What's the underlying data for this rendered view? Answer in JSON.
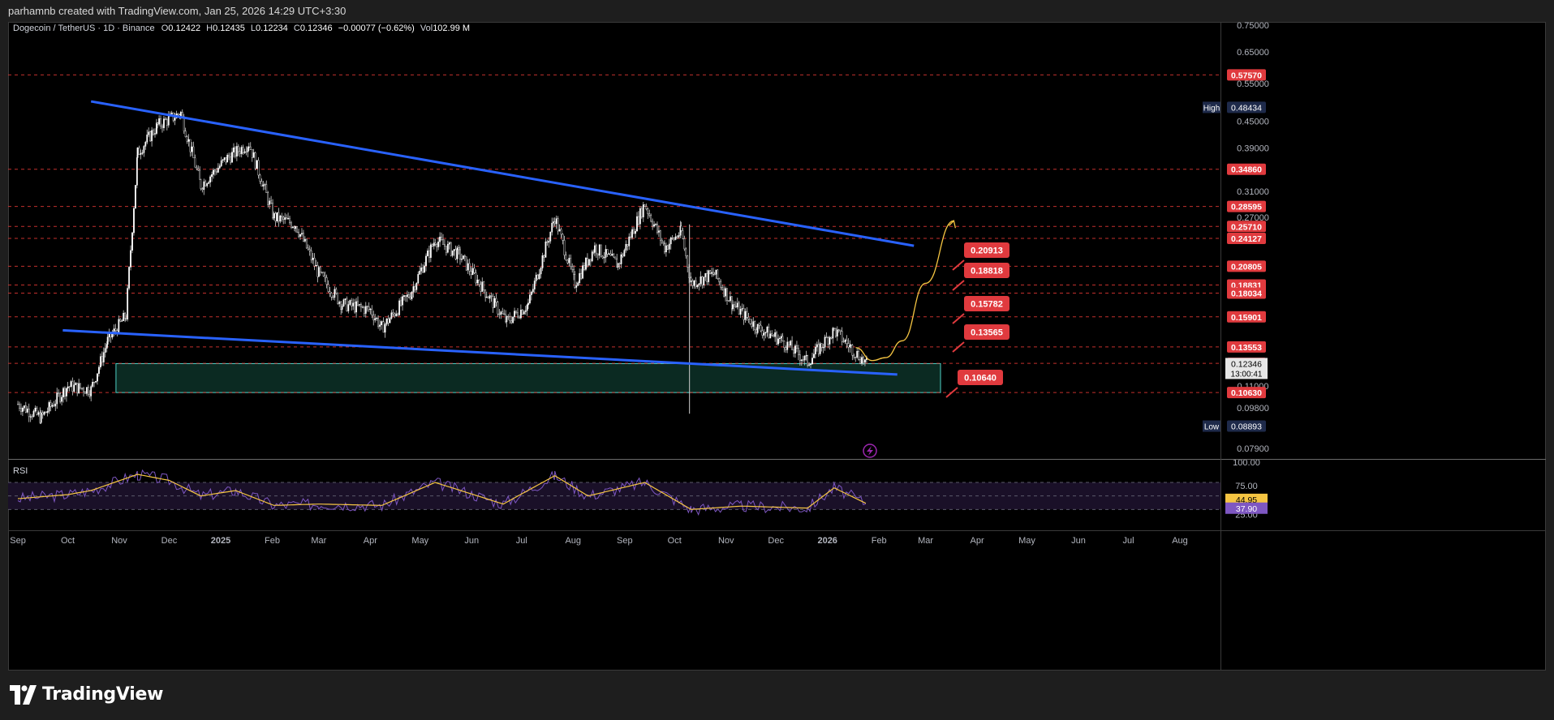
{
  "attribution": "parhamnb created with TradingView.com, Jan 25, 2026 14:29 UTC+3:30",
  "symbol_line": {
    "name": "Dogecoin / TetherUS · 1D · Binance",
    "open_label": "O",
    "open": "0.12422",
    "high_label": "H",
    "high": "0.12435",
    "low_label": "L",
    "low": "0.12234",
    "close_label": "C",
    "close": "0.12346",
    "change": "−0.00077 (−0.62%)",
    "volume_label": "Vol",
    "volume": "102.99 M"
  },
  "footer": {
    "logo_text": "TradingView"
  },
  "colors": {
    "up": "#ffffff",
    "trendline": "#2962ff",
    "level_line": "#e53935",
    "tag": "#e03a3e",
    "zone_border": "#4fd1c5",
    "zone_fill": "#0b2a22",
    "projection": "#f5c542",
    "rsi_line": "#7e57c2",
    "rsi_ma": "#f5c542",
    "high_low_tag": "#1e2a4a"
  },
  "chart_data": [
    {
      "type": "candlestick",
      "timeframe": "1D",
      "scale": "log",
      "price_axis_ticks": [
        "0.75000",
        "0.65000",
        "0.55000",
        "0.45000",
        "0.39000",
        "0.31000",
        "0.27000",
        "0.11000",
        "0.09800",
        "0.07900"
      ],
      "time_axis_ticks": [
        "Sep",
        "Oct",
        "Nov",
        "Dec",
        "2025",
        "Feb",
        "Mar",
        "Apr",
        "May",
        "Jun",
        "Jul",
        "Aug",
        "Sep",
        "Oct",
        "Nov",
        "Dec",
        "2026",
        "Feb",
        "Mar",
        "Apr",
        "May",
        "Jun",
        "Jul",
        "Aug"
      ],
      "series_close_approx": [
        [
          "2024-09-01",
          0.1
        ],
        [
          "2024-09-15",
          0.093
        ],
        [
          "2024-10-01",
          0.11
        ],
        [
          "2024-10-15",
          0.108
        ],
        [
          "2024-10-25",
          0.14
        ],
        [
          "2024-11-05",
          0.16
        ],
        [
          "2024-11-12",
          0.38
        ],
        [
          "2024-11-24",
          0.44
        ],
        [
          "2024-12-08",
          0.47
        ],
        [
          "2024-12-20",
          0.32
        ],
        [
          "2025-01-05",
          0.37
        ],
        [
          "2025-01-18",
          0.4
        ],
        [
          "2025-02-02",
          0.27
        ],
        [
          "2025-02-15",
          0.26
        ],
        [
          "2025-03-01",
          0.2
        ],
        [
          "2025-03-15",
          0.17
        ],
        [
          "2025-04-01",
          0.165
        ],
        [
          "2025-04-08",
          0.15
        ],
        [
          "2025-04-25",
          0.18
        ],
        [
          "2025-05-10",
          0.24
        ],
        [
          "2025-05-25",
          0.22
        ],
        [
          "2025-06-10",
          0.18
        ],
        [
          "2025-06-22",
          0.155
        ],
        [
          "2025-07-05",
          0.17
        ],
        [
          "2025-07-21",
          0.27
        ],
        [
          "2025-08-02",
          0.19
        ],
        [
          "2025-08-14",
          0.23
        ],
        [
          "2025-08-28",
          0.21
        ],
        [
          "2025-09-13",
          0.29
        ],
        [
          "2025-09-25",
          0.23
        ],
        [
          "2025-10-05",
          0.25
        ],
        [
          "2025-10-11",
          0.19
        ],
        [
          "2025-10-25",
          0.2
        ],
        [
          "2025-11-05",
          0.17
        ],
        [
          "2025-11-20",
          0.15
        ],
        [
          "2025-12-05",
          0.14
        ],
        [
          "2025-12-20",
          0.125
        ],
        [
          "2026-01-05",
          0.148
        ],
        [
          "2026-01-15",
          0.135
        ],
        [
          "2026-01-25",
          0.1235
        ]
      ],
      "high_tag": {
        "label": "High",
        "value": "0.48434"
      },
      "low_tag": {
        "label": "Low",
        "value": "0.08893"
      },
      "current_price": {
        "value": "0.12346",
        "countdown": "13:00:41"
      },
      "horizontal_levels": [
        "0.57570",
        "0.34860",
        "0.28595",
        "0.25710",
        "0.24127",
        "0.20805",
        "0.18831",
        "0.18034",
        "0.15901",
        "0.13553",
        "0.12415",
        "0.10630"
      ],
      "target_tags": [
        "0.20913",
        "0.18818",
        "0.15782",
        "0.13565",
        "0.10640"
      ],
      "trendlines": [
        {
          "from": [
            "2024-10-15",
            0.5
          ],
          "to": [
            "2026-02-22",
            0.232
          ]
        },
        {
          "from": [
            "2024-09-28",
            0.148
          ],
          "to": [
            "2026-02-12",
            0.117
          ]
        }
      ],
      "support_zone": {
        "from": "2024-10-30",
        "to": "2026-03-10",
        "top": 0.124,
        "bottom": 0.1063
      },
      "projection_path": [
        [
          "2026-01-18",
          0.135
        ],
        [
          "2026-01-28",
          0.126
        ],
        [
          "2026-02-05",
          0.128
        ],
        [
          "2026-02-15",
          0.14
        ],
        [
          "2026-03-01",
          0.19
        ],
        [
          "2026-03-18",
          0.265
        ]
      ]
    },
    {
      "type": "line",
      "title": "RSI",
      "axis_ticks": [
        "100.00",
        "75.00",
        "25.00"
      ],
      "current_values": {
        "rsi": "37.90",
        "rsi_ma": "44.95"
      },
      "series_approx": [
        [
          "2024-09-01",
          46
        ],
        [
          "2024-10-01",
          52
        ],
        [
          "2024-10-15",
          58
        ],
        [
          "2024-11-12",
          82
        ],
        [
          "2024-12-01",
          73
        ],
        [
          "2024-12-20",
          50
        ],
        [
          "2025-01-10",
          58
        ],
        [
          "2025-02-02",
          36
        ],
        [
          "2025-03-01",
          38
        ],
        [
          "2025-04-08",
          36
        ],
        [
          "2025-05-10",
          70
        ],
        [
          "2025-06-20",
          38
        ],
        [
          "2025-07-21",
          80
        ],
        [
          "2025-08-10",
          50
        ],
        [
          "2025-09-13",
          70
        ],
        [
          "2025-10-11",
          30
        ],
        [
          "2025-11-10",
          35
        ],
        [
          "2025-12-20",
          32
        ],
        [
          "2026-01-05",
          62
        ],
        [
          "2026-01-25",
          38
        ]
      ]
    }
  ]
}
